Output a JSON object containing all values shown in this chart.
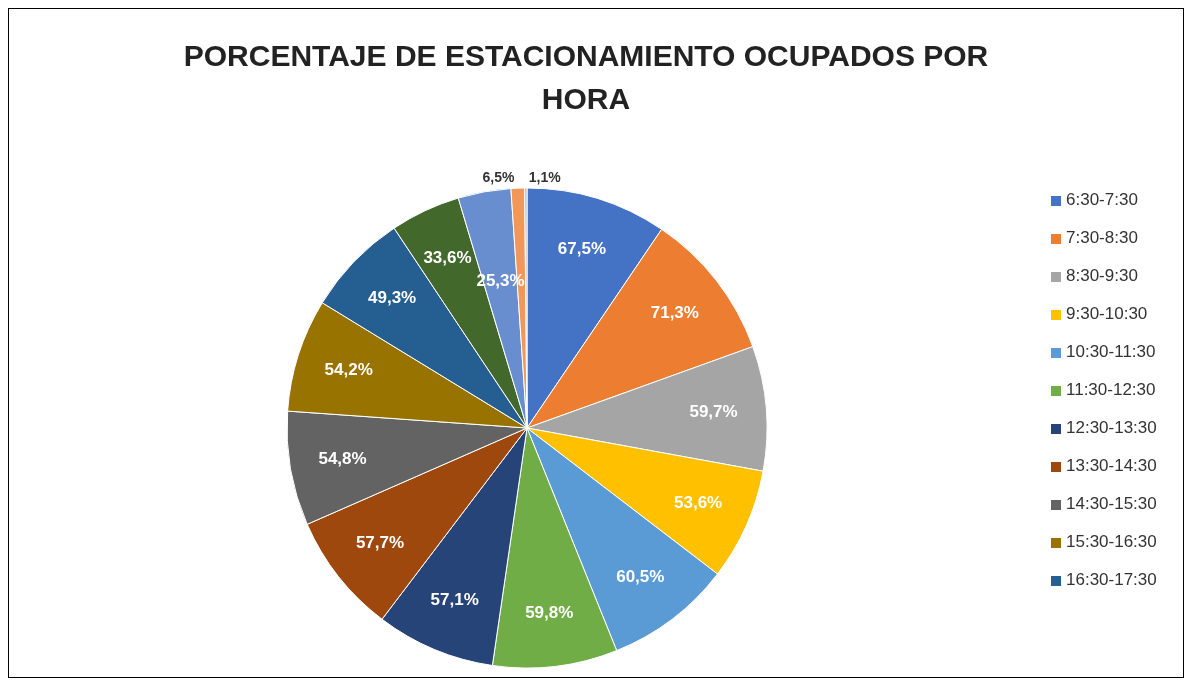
{
  "chart_data": {
    "type": "pie",
    "title": "PORCENTAJE DE ESTACIONAMIENTO OCUPADOS POR HORA",
    "categories": [
      "6:30-7:30",
      "7:30-8:30",
      "8:30-9:30",
      "9:30-10:30",
      "10:30-11:30",
      "11:30-12:30",
      "12:30-13:30",
      "13:30-14:30",
      "14:30-15:30",
      "15:30-16:30",
      "16:30-17:30",
      null,
      null,
      null,
      null
    ],
    "values": [
      67.5,
      71.3,
      59.7,
      53.6,
      60.5,
      59.8,
      57.1,
      57.7,
      54.8,
      54.2,
      49.3,
      33.6,
      25.3,
      6.5,
      1.1
    ],
    "value_labels": [
      "67,5%",
      "71,3%",
      "59,7%",
      "53,6%",
      "60,5%",
      "59,8%",
      "57,1%",
      "57,7%",
      "54,8%",
      "54,2%",
      "49,3%",
      "33,6%",
      "25,3%",
      "6,5%",
      "1,1%"
    ],
    "colors": [
      "#4472c4",
      "#ed7d31",
      "#a5a5a5",
      "#ffc000",
      "#5b9bd5",
      "#70ad47",
      "#264478",
      "#9e480e",
      "#636363",
      "#997300",
      "#255e91",
      "#43682b",
      "#698ed0",
      "#f1975a",
      "#b7b7b7"
    ],
    "legend": "right"
  }
}
